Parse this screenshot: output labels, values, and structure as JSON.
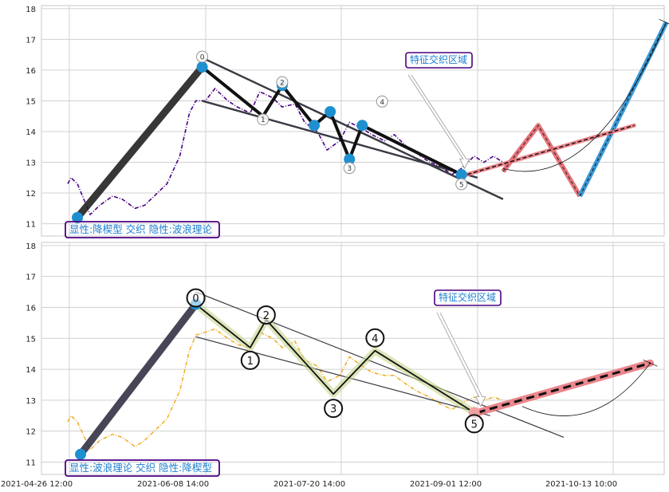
{
  "chart_data": {
    "type": "line",
    "x_tick_labels": [
      "2021-04-26 12:00",
      "2021-06-08 14:00",
      "2021-07-20 14:00",
      "2021-09-01 12:00",
      "2021-10-13 10:00"
    ],
    "grid": true,
    "colors": {
      "price_top": "#4b0082",
      "price_bottom": "#f0b030",
      "markers": "#1e90d0",
      "forecast_red": "#e8737a",
      "forecast_blue": "#3a9ad9",
      "label_border": "#4b0082",
      "label_text": "#1e7fd0"
    },
    "panels": [
      {
        "name": "top",
        "ylim": [
          10.6,
          18.1
        ],
        "yticks": [
          11,
          12,
          13,
          14,
          15,
          16,
          17,
          18
        ],
        "corner_label": "显性:降楔型 交织 隐性:波浪理论",
        "annotation": "特征交织区域",
        "wave_labels": [
          "0",
          "1",
          "2",
          "3",
          "4",
          "5"
        ],
        "price_series": [
          [
            "2021-04-26",
            12.3
          ],
          [
            "2021-04-27",
            12.5
          ],
          [
            "2021-04-28",
            12.4
          ],
          [
            "2021-04-29",
            12.3
          ],
          [
            "2021-05-03",
            11.3
          ],
          [
            "2021-05-06",
            11.6
          ],
          [
            "2021-05-10",
            11.9
          ],
          [
            "2021-05-13",
            11.8
          ],
          [
            "2021-05-17",
            11.5
          ],
          [
            "2021-05-20",
            11.6
          ],
          [
            "2021-05-24",
            12.0
          ],
          [
            "2021-05-27",
            12.3
          ],
          [
            "2021-05-31",
            13.2
          ],
          [
            "2021-06-03",
            14.6
          ],
          [
            "2021-06-05",
            15.0
          ],
          [
            "2021-06-08",
            15.0
          ],
          [
            "2021-06-11",
            15.4
          ],
          [
            "2021-06-15",
            15.0
          ],
          [
            "2021-06-18",
            14.8
          ],
          [
            "2021-06-22",
            14.6
          ],
          [
            "2021-06-25",
            15.3
          ],
          [
            "2021-06-29",
            15.1
          ],
          [
            "2021-07-02",
            14.8
          ],
          [
            "2021-07-06",
            14.9
          ],
          [
            "2021-07-09",
            14.3
          ],
          [
            "2021-07-13",
            14.0
          ],
          [
            "2021-07-16",
            13.4
          ],
          [
            "2021-07-20",
            13.7
          ],
          [
            "2021-07-23",
            14.3
          ],
          [
            "2021-07-27",
            14.1
          ],
          [
            "2021-07-30",
            13.9
          ],
          [
            "2021-08-03",
            13.7
          ],
          [
            "2021-08-06",
            13.9
          ],
          [
            "2021-08-10",
            13.5
          ],
          [
            "2021-08-13",
            13.3
          ],
          [
            "2021-08-17",
            13.0
          ],
          [
            "2021-08-20",
            12.9
          ],
          [
            "2021-08-24",
            12.6
          ],
          [
            "2021-08-27",
            12.8
          ],
          [
            "2021-08-31",
            13.2
          ],
          [
            "2021-09-03",
            13.0
          ],
          [
            "2021-09-06",
            13.2
          ],
          [
            "2021-09-09",
            13.0
          ]
        ],
        "wave_points": [
          {
            "x": "2021-06-07",
            "y": 16.1
          },
          {
            "x": "2021-06-26",
            "y": 14.5
          },
          {
            "x": "2021-07-02",
            "y": 15.5
          },
          {
            "x": "2021-07-12",
            "y": 14.2
          },
          {
            "x": "2021-07-17",
            "y": 14.65
          },
          {
            "x": "2021-07-23",
            "y": 13.1
          },
          {
            "x": "2021-07-27",
            "y": 14.2
          },
          {
            "x": "2021-08-27",
            "y": 12.6
          }
        ],
        "first_leg": [
          {
            "x": "2021-04-29",
            "y": 11.2
          },
          {
            "x": "2021-06-07",
            "y": 16.1
          }
        ],
        "channel_upper": [
          {
            "x": "2021-06-07",
            "y": 16.4
          },
          {
            "x": "2021-09-09",
            "y": 11.8
          }
        ],
        "channel_lower": [
          {
            "x": "2021-06-07",
            "y": 15.0
          },
          {
            "x": "2021-09-01",
            "y": 12.5
          }
        ],
        "forecast_red": [
          {
            "x": "2021-09-09",
            "y": 12.7
          },
          {
            "x": "2021-09-20",
            "y": 14.2
          },
          {
            "x": "2021-10-03",
            "y": 11.9
          }
        ],
        "forecast_blue": [
          {
            "x": "2021-10-03",
            "y": 11.9
          },
          {
            "x": "2021-10-30",
            "y": 17.55
          }
        ],
        "forecast_dashed": [
          {
            "x": "2021-08-27",
            "y": 12.55
          },
          {
            "x": "2021-10-20",
            "y": 14.2
          }
        ]
      },
      {
        "name": "bottom",
        "ylim": [
          10.6,
          18.1
        ],
        "yticks": [
          11,
          12,
          13,
          14,
          15,
          16,
          17,
          18
        ],
        "corner_label": "显性:波浪理论 交织 隐性:降楔型",
        "annotation": "特征交织区域",
        "wave_labels": [
          "0",
          "1",
          "2",
          "3",
          "4",
          "5"
        ],
        "price_series": [
          [
            "2021-04-26",
            12.3
          ],
          [
            "2021-04-27",
            12.5
          ],
          [
            "2021-04-28",
            12.4
          ],
          [
            "2021-04-29",
            12.3
          ],
          [
            "2021-05-03",
            11.4
          ],
          [
            "2021-05-06",
            11.7
          ],
          [
            "2021-05-10",
            11.9
          ],
          [
            "2021-05-13",
            11.8
          ],
          [
            "2021-05-17",
            11.5
          ],
          [
            "2021-05-20",
            11.7
          ],
          [
            "2021-05-24",
            12.1
          ],
          [
            "2021-05-27",
            12.4
          ],
          [
            "2021-05-31",
            13.3
          ],
          [
            "2021-06-03",
            14.6
          ],
          [
            "2021-06-05",
            15.1
          ],
          [
            "2021-06-08",
            15.2
          ],
          [
            "2021-06-11",
            15.3
          ],
          [
            "2021-06-15",
            15.0
          ],
          [
            "2021-06-18",
            14.8
          ],
          [
            "2021-06-22",
            14.7
          ],
          [
            "2021-06-25",
            15.2
          ],
          [
            "2021-06-29",
            15.0
          ],
          [
            "2021-07-02",
            14.7
          ],
          [
            "2021-07-06",
            14.9
          ],
          [
            "2021-07-09",
            14.3
          ],
          [
            "2021-07-13",
            14.1
          ],
          [
            "2021-07-16",
            13.6
          ],
          [
            "2021-07-20",
            13.8
          ],
          [
            "2021-07-23",
            14.4
          ],
          [
            "2021-07-27",
            14.1
          ],
          [
            "2021-07-30",
            13.9
          ],
          [
            "2021-08-03",
            13.8
          ],
          [
            "2021-08-06",
            13.8
          ],
          [
            "2021-08-10",
            13.5
          ],
          [
            "2021-08-13",
            13.3
          ],
          [
            "2021-08-17",
            13.1
          ],
          [
            "2021-08-20",
            12.9
          ],
          [
            "2021-08-24",
            12.7
          ],
          [
            "2021-08-27",
            12.9
          ],
          [
            "2021-08-31",
            13.1
          ],
          [
            "2021-09-03",
            13.0
          ],
          [
            "2021-09-06",
            13.1
          ],
          [
            "2021-09-09",
            13.0
          ]
        ],
        "wave_points": [
          {
            "x": "2021-06-05",
            "y": 16.1
          },
          {
            "x": "2021-06-22",
            "y": 14.7
          },
          {
            "x": "2021-06-27",
            "y": 15.6
          },
          {
            "x": "2021-07-18",
            "y": 13.2
          },
          {
            "x": "2021-07-31",
            "y": 14.6
          },
          {
            "x": "2021-08-31",
            "y": 12.6
          }
        ],
        "first_leg": [
          {
            "x": "2021-04-30",
            "y": 11.25
          },
          {
            "x": "2021-06-05",
            "y": 16.1
          }
        ],
        "channel_upper": [
          {
            "x": "2021-06-05",
            "y": 16.5
          },
          {
            "x": "2021-09-28",
            "y": 11.8
          }
        ],
        "channel_lower": [
          {
            "x": "2021-06-05",
            "y": 15.05
          },
          {
            "x": "2021-09-05",
            "y": 12.5
          }
        ],
        "forecast_dashed": [
          {
            "x": "2021-09-01",
            "y": 12.6
          },
          {
            "x": "2021-10-25",
            "y": 14.2
          }
        ]
      }
    ]
  }
}
